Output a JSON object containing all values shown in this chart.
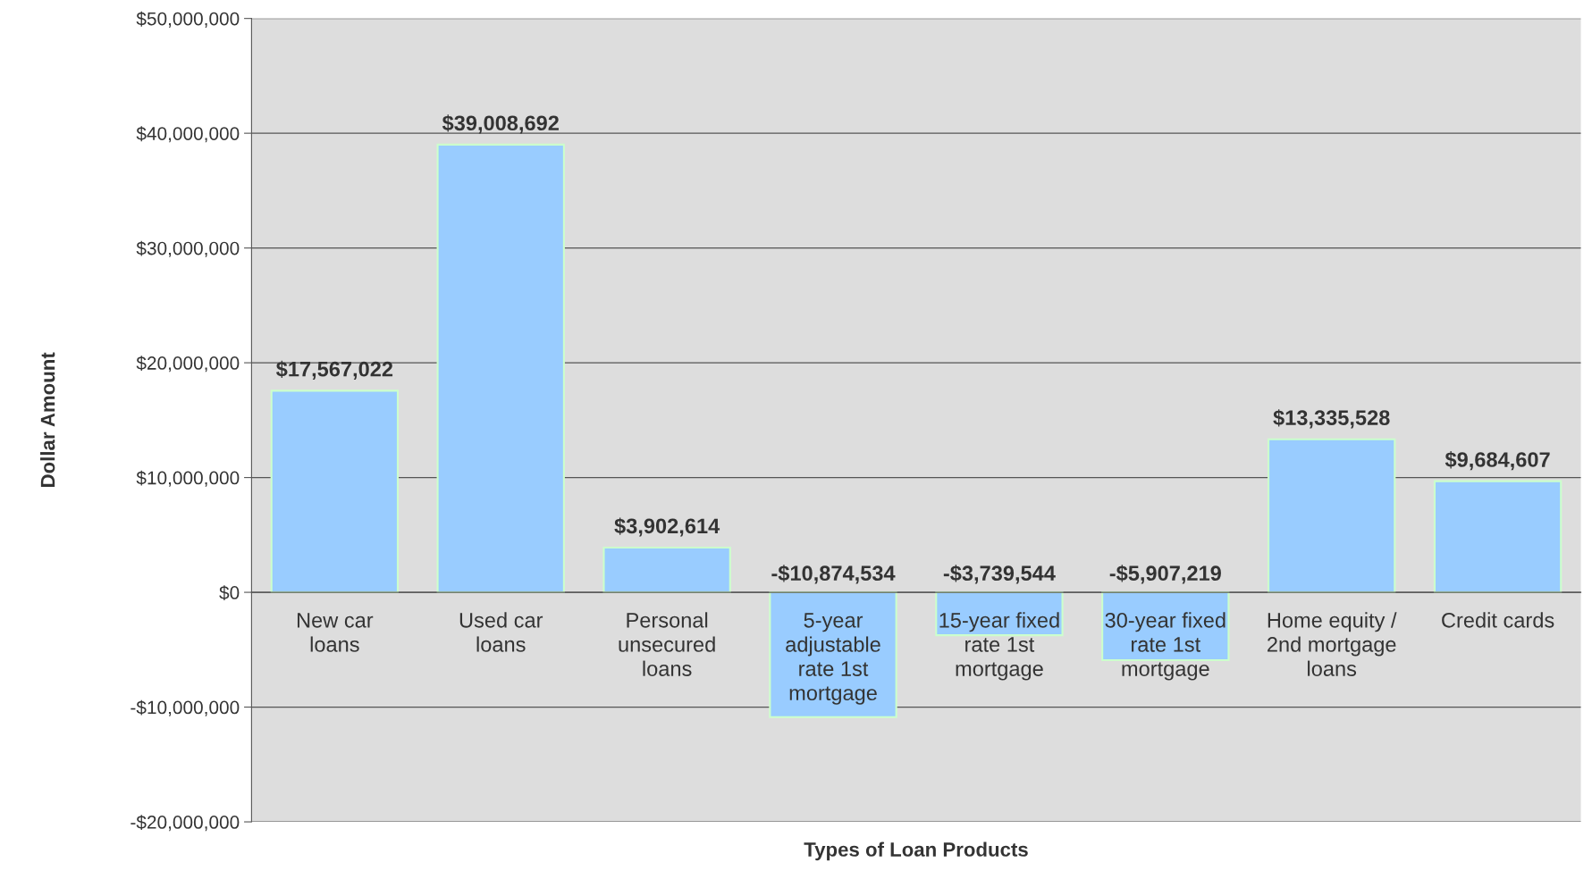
{
  "chart_data": {
    "type": "bar",
    "xlabel": "Types of Loan Products",
    "ylabel": "Dollar Amount",
    "categories": [
      "New car\nloans",
      "Used car\nloans",
      "Personal\nunsecured\nloans",
      "5-year\nadjustable\nrate 1st\nmortgage",
      "15-year fixed\nrate 1st\nmortgage",
      "30-year fixed\nrate 1st\nmortgage",
      "Home equity /\n2nd mortgage\nloans",
      "Credit cards"
    ],
    "values": [
      17567022,
      39008692,
      3902614,
      -10874534,
      -3739544,
      -5907219,
      13335528,
      9684607
    ],
    "color": "#99ccff",
    "data_labels": true,
    "value_labels": [
      "$17,567,022",
      "$39,008,692",
      "$3,902,614",
      "-$10,874,534",
      "-$3,739,544",
      "-$5,907,219",
      "$13,335,528",
      "$9,684,607"
    ],
    "ylim": [
      -20000000,
      50000000
    ],
    "yticks": [
      {
        "value": -20000000,
        "label": "-$20,000,000"
      },
      {
        "value": -10000000,
        "label": "-$10,000,000"
      },
      {
        "value": 0,
        "label": "$0"
      },
      {
        "value": 10000000,
        "label": "$10,000,000"
      },
      {
        "value": 20000000,
        "label": "$20,000,000"
      },
      {
        "value": 30000000,
        "label": "$30,000,000"
      },
      {
        "value": 40000000,
        "label": "$40,000,000"
      },
      {
        "value": 50000000,
        "label": "$50,000,000"
      }
    ],
    "grid": "y",
    "legend": false
  }
}
